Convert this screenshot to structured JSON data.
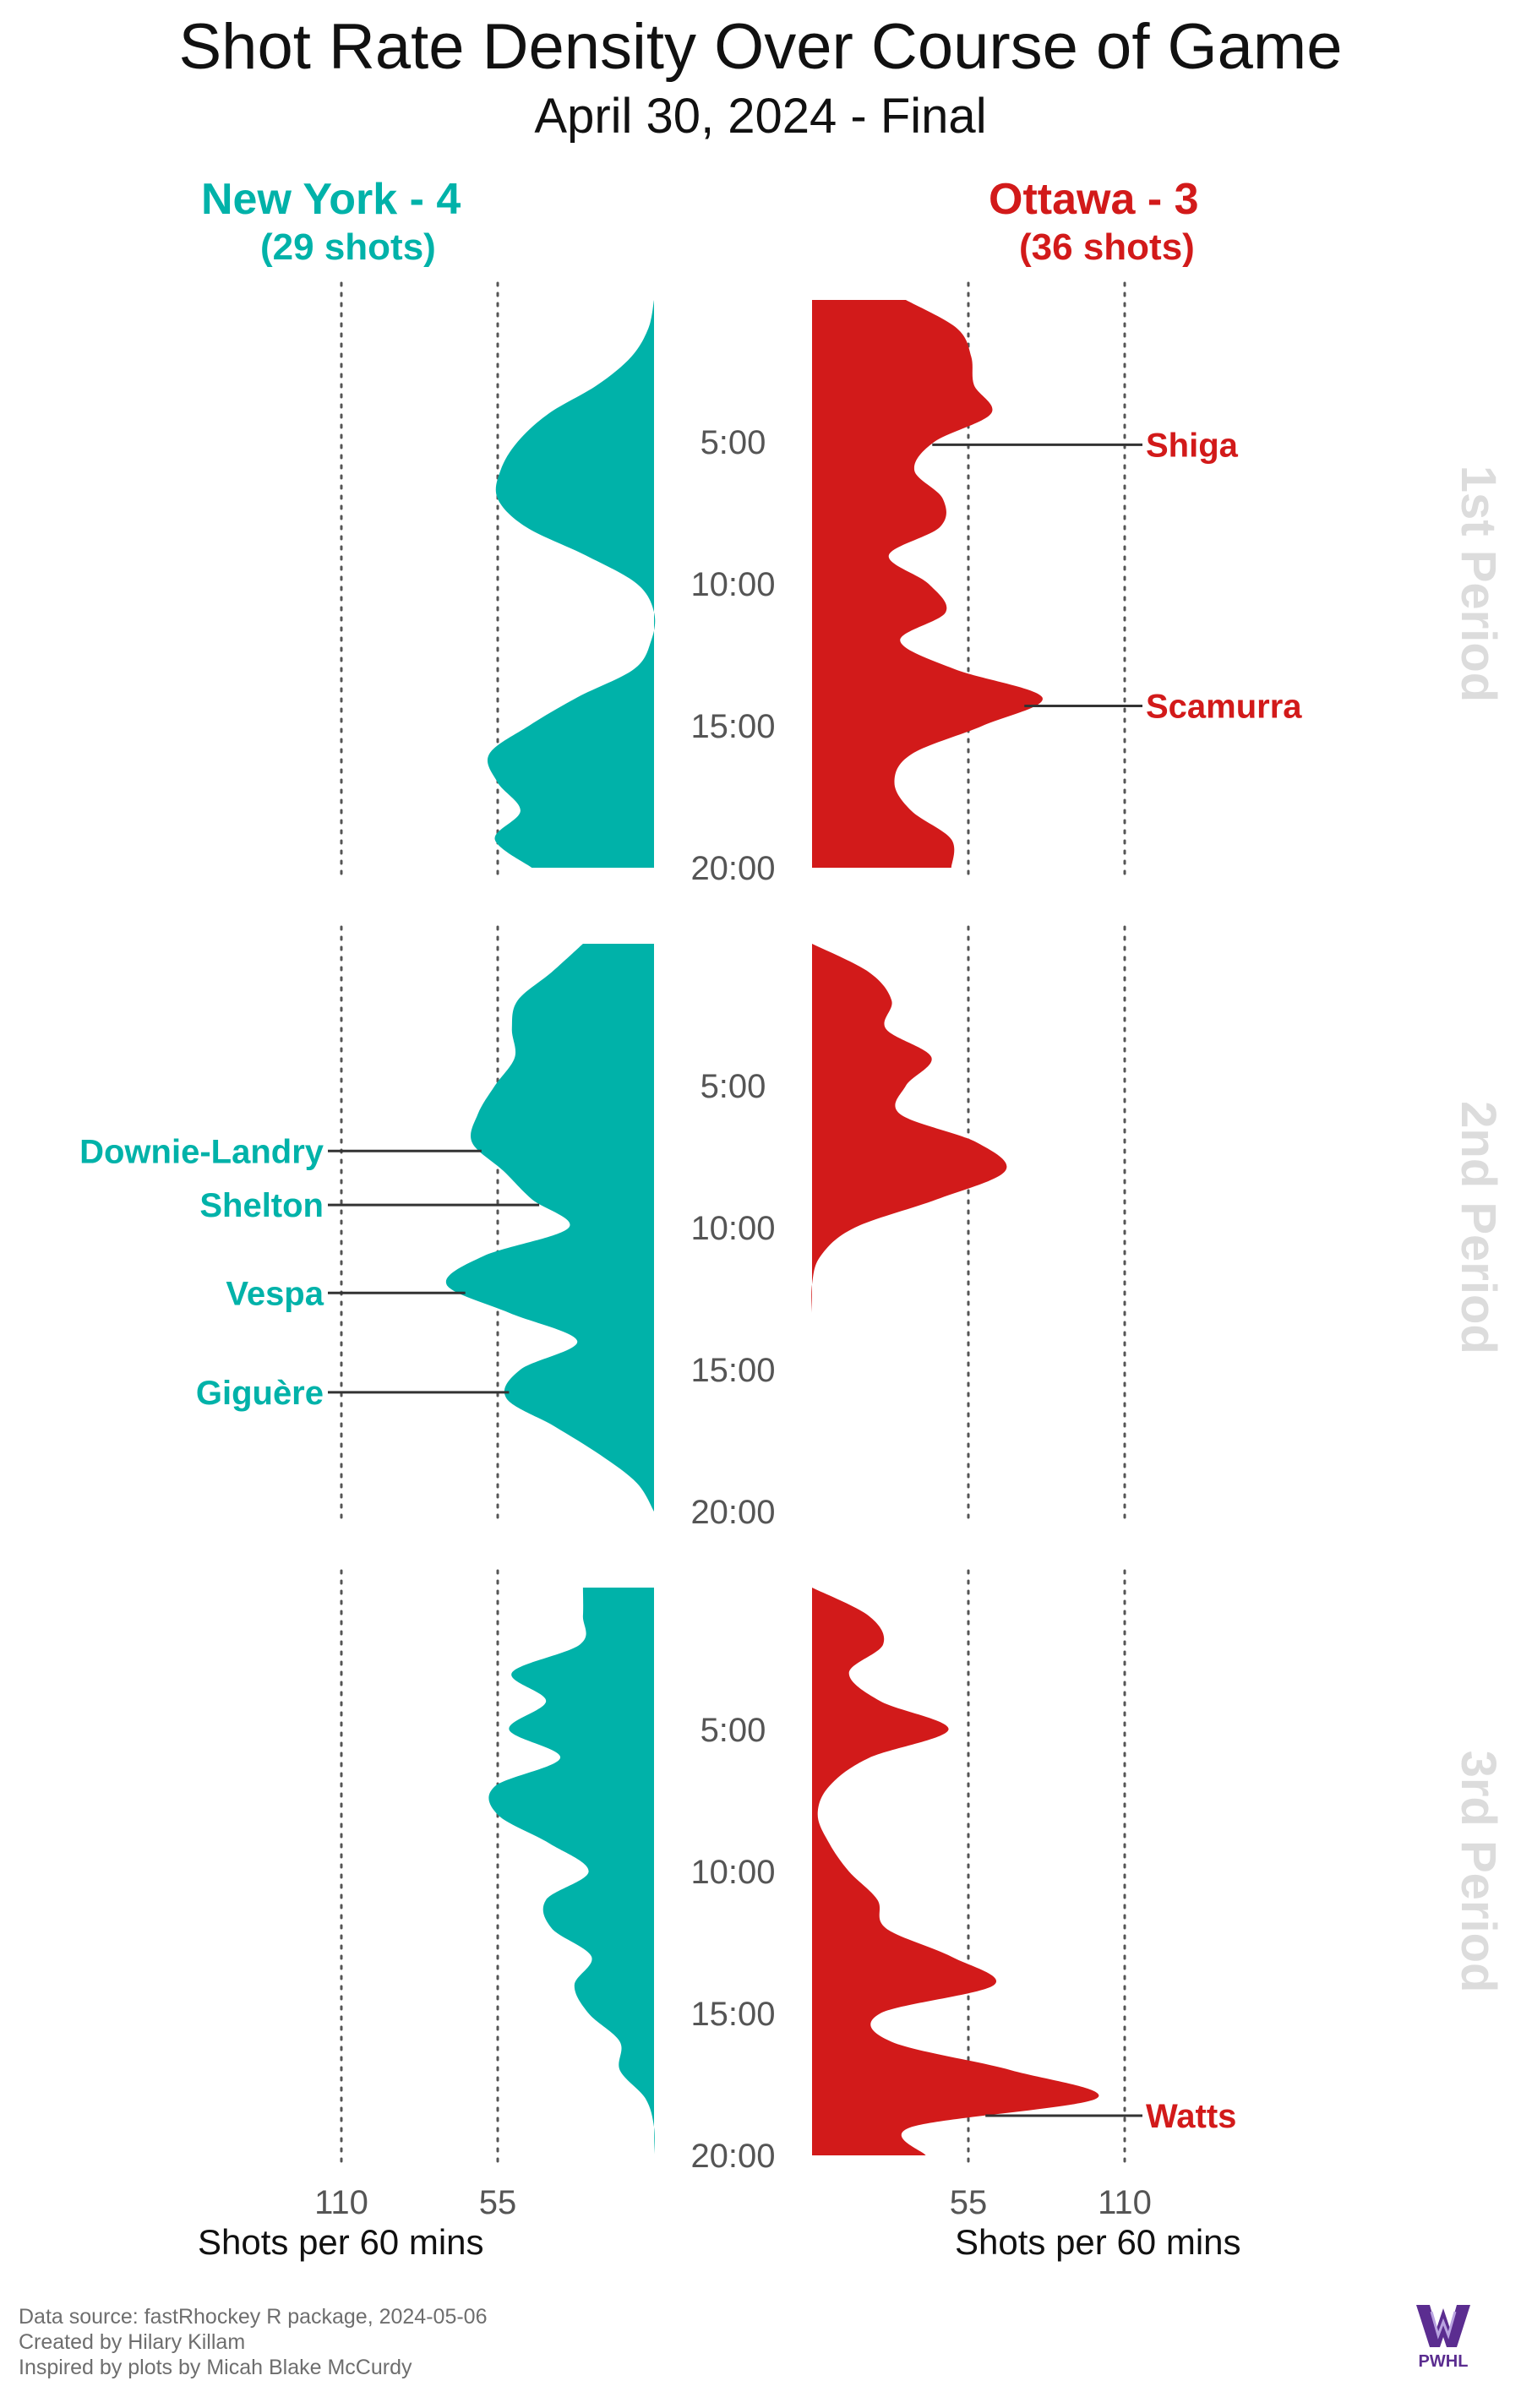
{
  "title": "Shot Rate Density Over Course of Game",
  "subtitle": "April 30, 2024 - Final",
  "teams": {
    "left": {
      "name": "New York - 4",
      "shots": "(29 shots)",
      "color": "#00b2a9"
    },
    "right": {
      "name": "Ottawa - 3",
      "shots": "(36 shots)",
      "color": "#d21a1a"
    }
  },
  "axis_title": "Shots per 60 mins",
  "footer": {
    "source": "Data source: fastRhockey R package, 2024-05-06",
    "created": "Created by Hilary Killam",
    "inspired": "Inspired by plots by Micah Blake McCurdy"
  },
  "logo_text": "PWHL",
  "chart_data": {
    "type": "area",
    "orientation": "mirrored density over game time, 3 period panels",
    "time_ticks": [
      "5:00",
      "10:00",
      "15:00",
      "20:00"
    ],
    "time_tick_minutes": [
      5,
      10,
      15,
      20
    ],
    "rate_ticks": [
      55,
      110
    ],
    "rate_unit": "Shots per 60 mins",
    "periods": [
      {
        "label": "1st Period",
        "series": [
          {
            "name": "New York - 4",
            "color": "#00b2a9",
            "minutes": [
              0,
              1,
              2,
              3,
              4,
              5,
              6,
              7,
              8,
              9,
              10,
              11,
              12,
              13,
              14,
              15,
              16,
              17,
              18,
              19,
              20
            ],
            "rate": [
              0,
              2,
              8,
              20,
              37,
              48,
              54,
              55,
              45,
              24,
              6,
              0,
              1,
              7,
              27,
              44,
              58,
              55,
              47,
              56,
              43
            ]
          },
          {
            "name": "Ottawa - 3",
            "color": "#d21a1a",
            "minutes": [
              0,
              1,
              2,
              3,
              4,
              5,
              6,
              7,
              8,
              9,
              10,
              11,
              12,
              13,
              14,
              15,
              16,
              17,
              18,
              19,
              20
            ],
            "rate": [
              33,
              51,
              56,
              57,
              63,
              43,
              36,
              46,
              45,
              27,
              41,
              47,
              31,
              50,
              81,
              60,
              35,
              29,
              35,
              49,
              49
            ]
          }
        ],
        "players": [
          {
            "name": "Shiga",
            "team": "Ottawa - 3",
            "minute": 5.1
          },
          {
            "name": "Scamurra",
            "team": "Ottawa - 3",
            "minute": 14.3
          }
        ]
      },
      {
        "label": "2nd Period",
        "series": [
          {
            "name": "New York - 4",
            "color": "#00b2a9",
            "minutes": [
              0,
              1,
              2,
              3,
              4,
              5,
              6,
              7,
              8,
              9,
              10,
              11,
              12,
              13,
              14,
              15,
              16,
              17,
              18,
              19,
              20
            ],
            "rate": [
              25,
              36,
              48,
              50,
              49,
              56,
              62,
              64,
              53,
              43,
              30,
              60,
              73,
              51,
              27,
              47,
              52,
              35,
              19,
              6,
              0
            ]
          },
          {
            "name": "Ottawa - 3",
            "color": "#d21a1a",
            "minutes": [
              0,
              1,
              2,
              3,
              4,
              5,
              6,
              7,
              8,
              9,
              10,
              11,
              12,
              13
            ],
            "rate": [
              0,
              20,
              28,
              26,
              42,
              33,
              31,
              58,
              68,
              44,
              15,
              3,
              0,
              0
            ]
          }
        ],
        "players": [
          {
            "name": "Downie-Landry",
            "team": "New York - 4",
            "minute": 7.3
          },
          {
            "name": "Shelton",
            "team": "New York - 4",
            "minute": 9.2
          },
          {
            "name": "Vespa",
            "team": "New York - 4",
            "minute": 12.3
          },
          {
            "name": "Giguère",
            "team": "New York - 4",
            "minute": 15.8
          }
        ]
      },
      {
        "label": "3rd Period",
        "series": [
          {
            "name": "New York - 4",
            "color": "#00b2a9",
            "minutes": [
              0,
              1,
              2,
              3,
              4,
              5,
              6,
              7,
              8,
              9,
              10,
              11,
              12,
              13,
              14,
              15,
              16,
              17,
              18,
              19,
              20
            ],
            "rate": [
              25,
              25,
              26,
              50,
              38,
              51,
              33,
              56,
              55,
              37,
              23,
              38,
              36,
              22,
              28,
              23,
              12,
              12,
              3,
              0,
              0
            ]
          },
          {
            "name": "Ottawa - 3",
            "color": "#d21a1a",
            "minutes": [
              0,
              1,
              2,
              3,
              4,
              5,
              6,
              7,
              8,
              9,
              10,
              11,
              12,
              13,
              14,
              15,
              16,
              17,
              18,
              19,
              20
            ],
            "rate": [
              0,
              20,
              25,
              13,
              24,
              48,
              20,
              6,
              2,
              6,
              13,
              23,
              26,
              49,
              64,
              24,
              28,
              70,
              100,
              35,
              40
            ]
          }
        ],
        "players": [
          {
            "name": "Watts",
            "team": "Ottawa - 3",
            "minute": 18.6
          }
        ]
      }
    ],
    "grid": "dotted verticals at 55 and 110",
    "legend": "team names at top"
  }
}
